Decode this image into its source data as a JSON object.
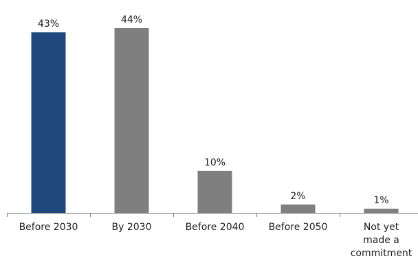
{
  "chart_data": {
    "type": "bar",
    "title": "",
    "xlabel": "",
    "ylabel": "",
    "categories": [
      [
        "Before 2030"
      ],
      [
        "By 2030"
      ],
      [
        "Before 2040"
      ],
      [
        "Before 2050"
      ],
      [
        "Not yet",
        "made a",
        "commitment"
      ]
    ],
    "values": [
      43,
      44,
      10,
      2,
      1
    ],
    "value_labels": [
      "43%",
      "44%",
      "10%",
      "2%",
      "1%"
    ],
    "unit": "%",
    "ylim": [
      0,
      44
    ],
    "grid": false,
    "legend": "none",
    "colors": {
      "highlight": "#1f497d",
      "default": "#7f7f7f",
      "axis": "#7f7f7f",
      "text": "#1a1a1a"
    },
    "highlight_index": 0
  }
}
